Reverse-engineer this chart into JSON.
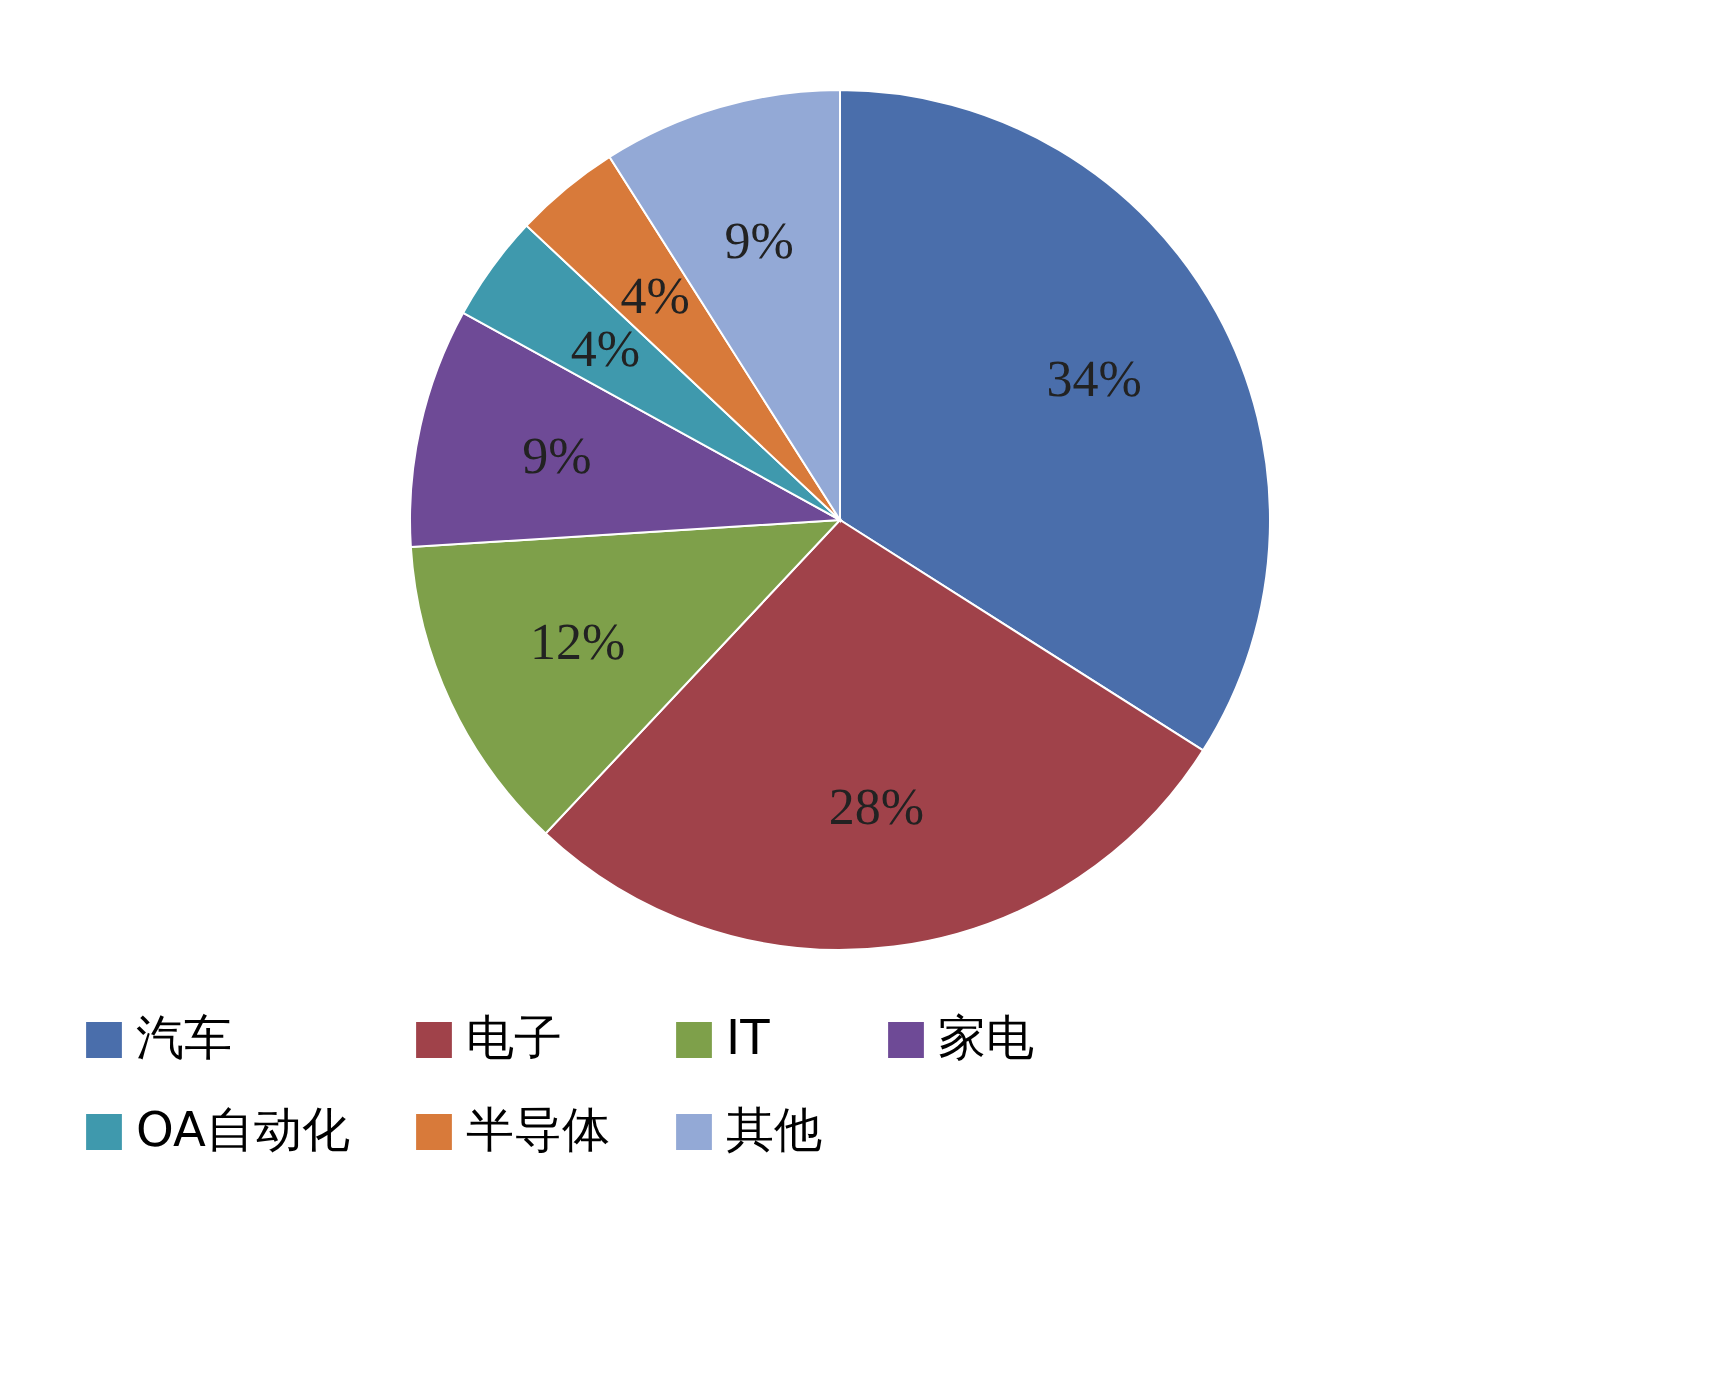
{
  "chart_data": {
    "type": "pie",
    "categories": [
      "汽车",
      "电子",
      "IT",
      "家电",
      "OA自动化",
      "半导体",
      "其他"
    ],
    "values": [
      34,
      28,
      12,
      9,
      4,
      4,
      9
    ],
    "value_labels": [
      "34%",
      "28%",
      "12%",
      "9%",
      "4%",
      "4%",
      "9%"
    ],
    "colors": [
      "#4a6eab",
      "#a0424a",
      "#7ea04a",
      "#6e4a96",
      "#3f99ad",
      "#d87a3a",
      "#93a9d6"
    ],
    "legend": "bottom"
  }
}
